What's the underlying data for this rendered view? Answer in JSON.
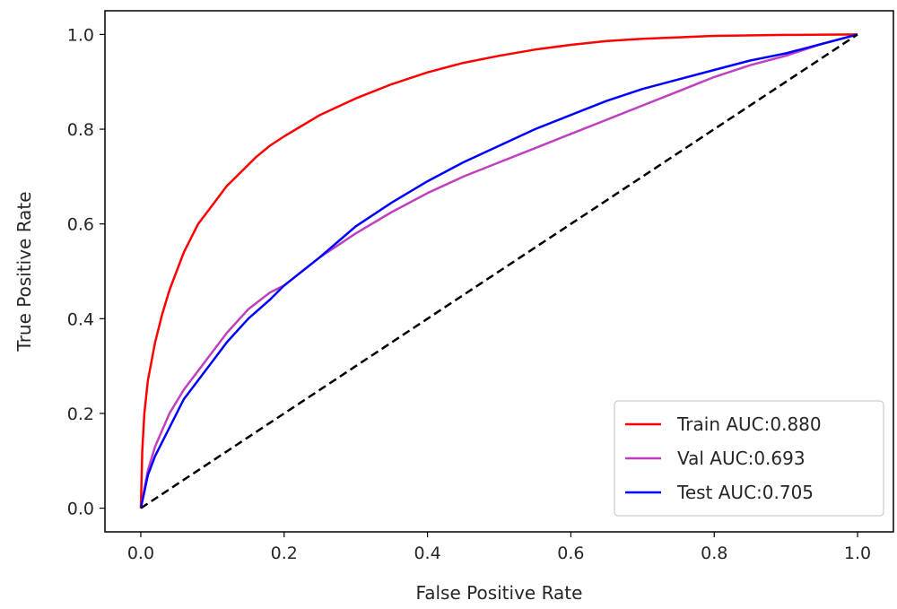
{
  "chart_data": {
    "type": "line",
    "title": "",
    "xlabel": "False Positive Rate",
    "ylabel": "True Positive Rate",
    "xlim": [
      -0.05,
      1.05
    ],
    "ylim": [
      -0.05,
      1.05
    ],
    "xticks": [
      0.0,
      0.2,
      0.4,
      0.6,
      0.8,
      1.0
    ],
    "yticks": [
      0.0,
      0.2,
      0.4,
      0.6,
      0.8,
      1.0
    ],
    "xtick_labels": [
      "0.0",
      "0.2",
      "0.4",
      "0.6",
      "0.8",
      "1.0"
    ],
    "ytick_labels": [
      "0.0",
      "0.2",
      "0.4",
      "0.6",
      "0.8",
      "1.0"
    ],
    "grid": false,
    "legend_position": "lower-right",
    "series": [
      {
        "name": "Train AUC:0.880",
        "color": "#ff0000",
        "x": [
          0.0,
          0.002,
          0.005,
          0.01,
          0.02,
          0.03,
          0.04,
          0.05,
          0.06,
          0.07,
          0.08,
          0.1,
          0.12,
          0.14,
          0.16,
          0.18,
          0.2,
          0.25,
          0.3,
          0.35,
          0.4,
          0.45,
          0.5,
          0.55,
          0.6,
          0.65,
          0.7,
          0.8,
          0.9,
          1.0
        ],
        "y": [
          0.0,
          0.12,
          0.2,
          0.27,
          0.35,
          0.41,
          0.46,
          0.5,
          0.54,
          0.57,
          0.6,
          0.64,
          0.68,
          0.71,
          0.74,
          0.765,
          0.785,
          0.83,
          0.865,
          0.895,
          0.92,
          0.94,
          0.955,
          0.968,
          0.978,
          0.986,
          0.991,
          0.997,
          0.999,
          1.0
        ]
      },
      {
        "name": "Val AUC:0.693",
        "color": "#bf3fbf",
        "x": [
          0.0,
          0.01,
          0.02,
          0.04,
          0.06,
          0.08,
          0.1,
          0.12,
          0.15,
          0.18,
          0.2,
          0.25,
          0.3,
          0.35,
          0.4,
          0.45,
          0.5,
          0.55,
          0.6,
          0.65,
          0.7,
          0.75,
          0.8,
          0.85,
          0.9,
          0.95,
          1.0
        ],
        "y": [
          0.0,
          0.08,
          0.13,
          0.2,
          0.25,
          0.29,
          0.33,
          0.37,
          0.42,
          0.455,
          0.47,
          0.53,
          0.58,
          0.625,
          0.665,
          0.7,
          0.73,
          0.76,
          0.79,
          0.82,
          0.85,
          0.88,
          0.91,
          0.935,
          0.955,
          0.98,
          1.0
        ]
      },
      {
        "name": "Test AUC:0.705",
        "color": "#0000ff",
        "x": [
          0.0,
          0.01,
          0.02,
          0.04,
          0.06,
          0.08,
          0.1,
          0.12,
          0.15,
          0.18,
          0.2,
          0.25,
          0.3,
          0.35,
          0.4,
          0.45,
          0.5,
          0.55,
          0.6,
          0.65,
          0.7,
          0.75,
          0.8,
          0.85,
          0.9,
          0.95,
          1.0
        ],
        "y": [
          0.0,
          0.07,
          0.11,
          0.17,
          0.23,
          0.27,
          0.31,
          0.35,
          0.4,
          0.44,
          0.47,
          0.53,
          0.595,
          0.645,
          0.69,
          0.73,
          0.765,
          0.8,
          0.83,
          0.86,
          0.885,
          0.905,
          0.925,
          0.945,
          0.96,
          0.98,
          1.0
        ]
      },
      {
        "name": "",
        "color": "#000000",
        "style": "dashed",
        "x": [
          0.0,
          1.0
        ],
        "y": [
          0.0,
          1.0
        ]
      }
    ]
  }
}
